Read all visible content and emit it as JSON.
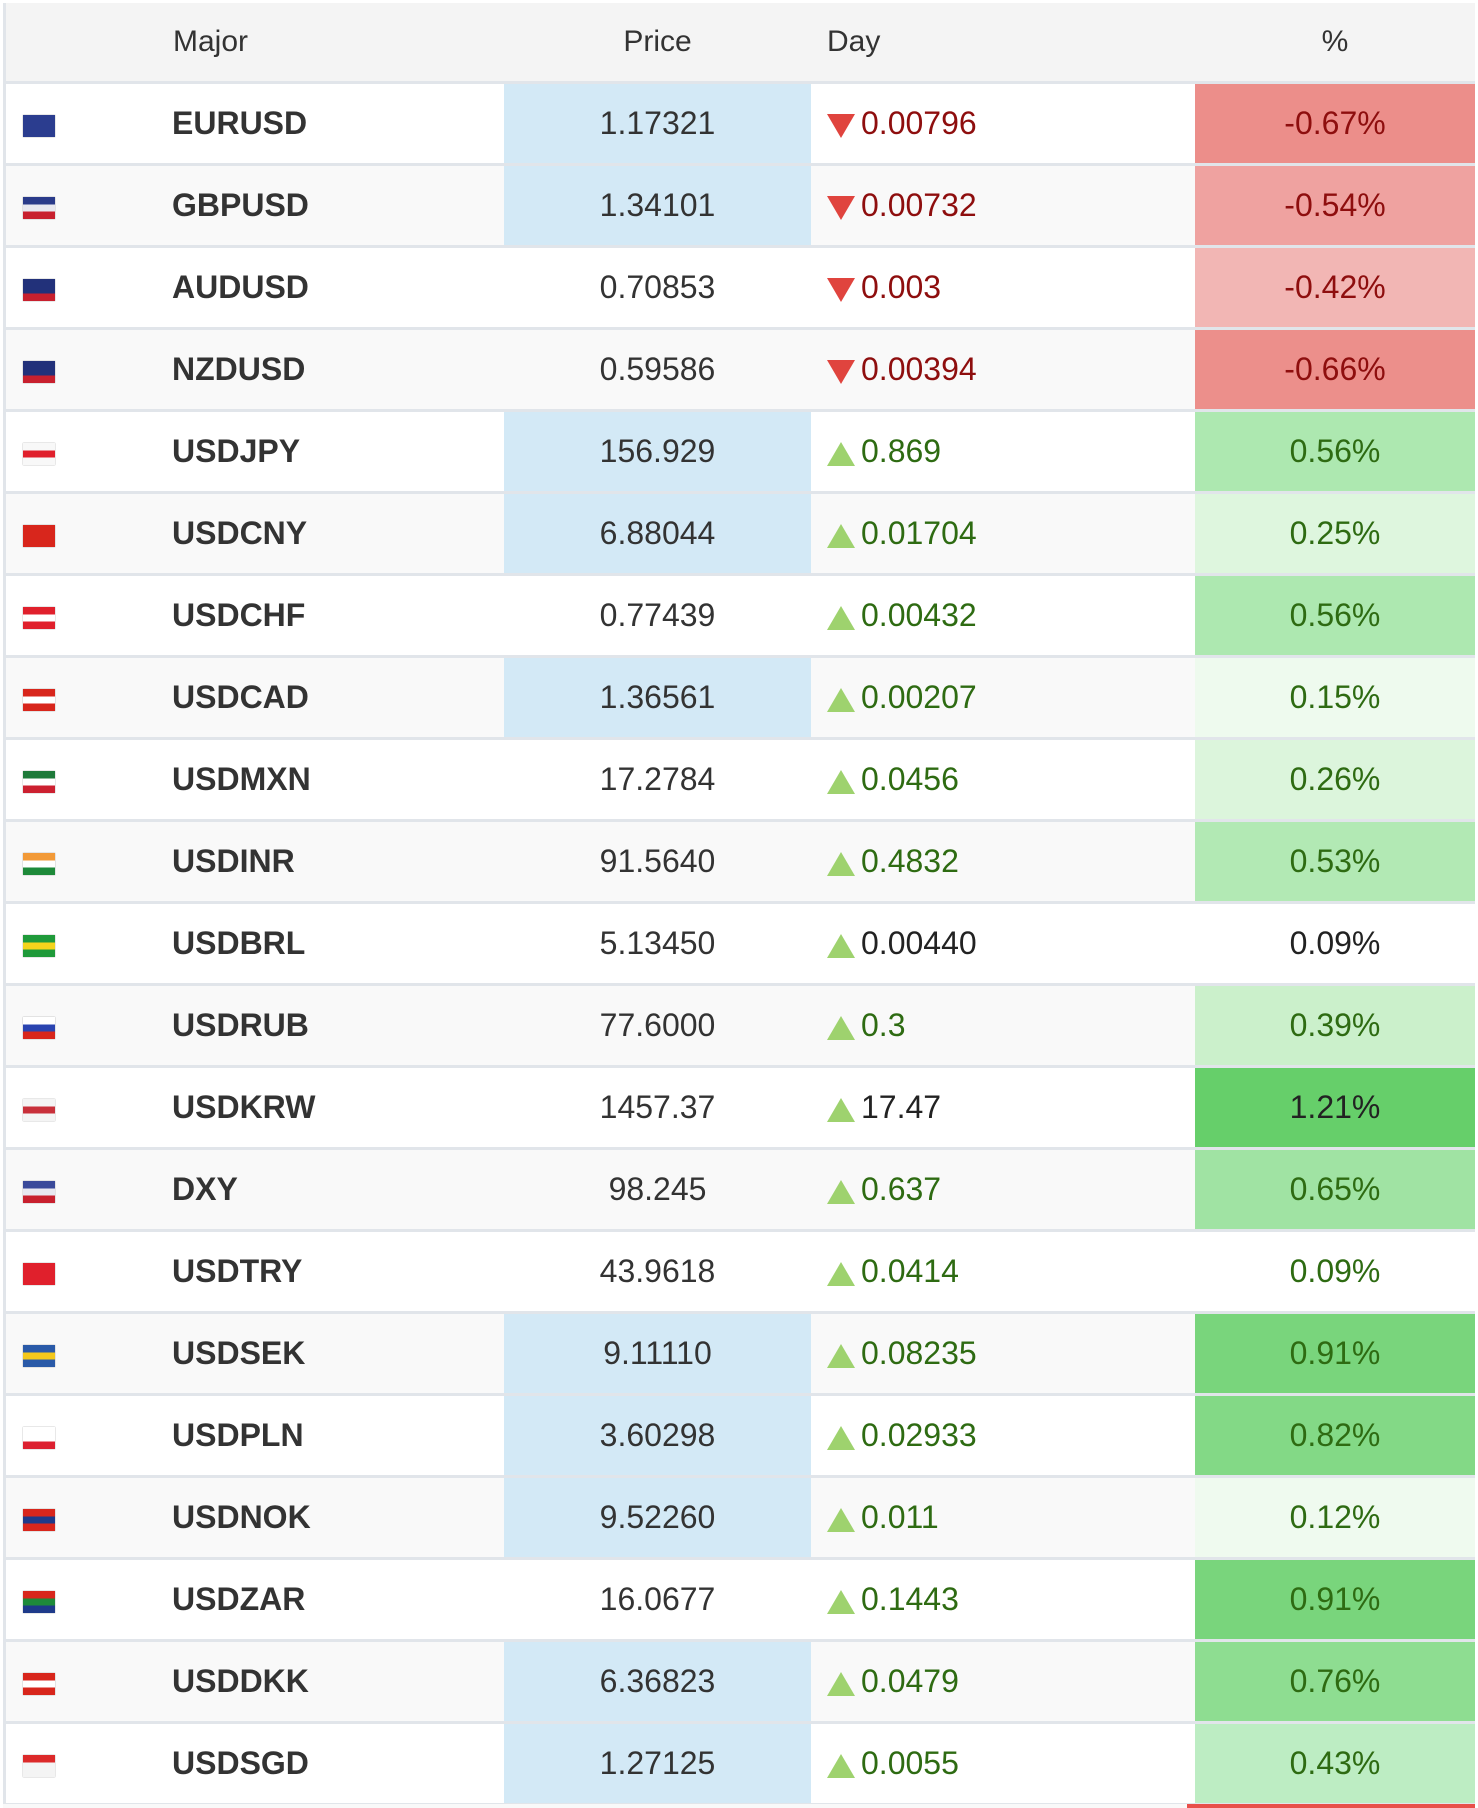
{
  "header": {
    "major": "Major",
    "price": "Price",
    "day": "Day",
    "pct": "%"
  },
  "rows": [
    {
      "symbol": "EURUSD",
      "price": "1.17321",
      "day": "0.00796",
      "dir": "down",
      "pct": "-0.67%",
      "pct_bg": "#ec8e8a",
      "price_hl": true,
      "flag": [
        "#2b3d8f",
        "#2b3d8f",
        "#2b3d8f"
      ]
    },
    {
      "symbol": "GBPUSD",
      "price": "1.34101",
      "day": "0.00732",
      "dir": "down",
      "pct": "-0.54%",
      "pct_bg": "#efa2a0",
      "price_hl": true,
      "flag": [
        "#2a3b8a",
        "#e8e8f0",
        "#c8202e"
      ]
    },
    {
      "symbol": "AUDUSD",
      "price": "0.70853",
      "day": "0.003",
      "dir": "down",
      "pct": "-0.42%",
      "pct_bg": "#f2b6b4",
      "price_hl": false,
      "flag": [
        "#22317a",
        "#22317a",
        "#c8202e"
      ]
    },
    {
      "symbol": "NZDUSD",
      "price": "0.59586",
      "day": "0.00394",
      "dir": "down",
      "pct": "-0.66%",
      "pct_bg": "#ec8f8b",
      "price_hl": false,
      "flag": [
        "#22317a",
        "#22317a",
        "#c8202e"
      ]
    },
    {
      "symbol": "USDJPY",
      "price": "156.929",
      "day": "0.869",
      "dir": "up",
      "pct": "0.56%",
      "pct_bg": "#ade8b0",
      "price_hl": true,
      "flag": [
        "#f8f8f8",
        "#e0202c",
        "#f8f8f8"
      ]
    },
    {
      "symbol": "USDCNY",
      "price": "6.88044",
      "day": "0.01704",
      "dir": "up",
      "pct": "0.25%",
      "pct_bg": "#def6de",
      "price_hl": true,
      "flag": [
        "#d8261c",
        "#d8261c",
        "#d8261c"
      ]
    },
    {
      "symbol": "USDCHF",
      "price": "0.77439",
      "day": "0.00432",
      "dir": "up",
      "pct": "0.56%",
      "pct_bg": "#ade8b0",
      "price_hl": false,
      "flag": [
        "#e0202c",
        "#ffffff",
        "#e0202c"
      ]
    },
    {
      "symbol": "USDCAD",
      "price": "1.36561",
      "day": "0.00207",
      "dir": "up",
      "pct": "0.15%",
      "pct_bg": "#eefaee",
      "price_hl": true,
      "flag": [
        "#d8261c",
        "#ffffff",
        "#d8261c"
      ]
    },
    {
      "symbol": "USDMXN",
      "price": "17.2784",
      "day": "0.0456",
      "dir": "up",
      "pct": "0.26%",
      "pct_bg": "#dcf5dc",
      "price_hl": false,
      "flag": [
        "#1e7a3a",
        "#ffffff",
        "#cc2030"
      ]
    },
    {
      "symbol": "USDINR",
      "price": "91.5640",
      "day": "0.4832",
      "dir": "up",
      "pct": "0.53%",
      "pct_bg": "#b2e9b4",
      "price_hl": false,
      "flag": [
        "#f29a38",
        "#ffffff",
        "#1e8a3a"
      ]
    },
    {
      "symbol": "USDBRL",
      "price": "5.13450",
      "day": "0.00440",
      "dir": "up",
      "pct": "0.09%",
      "pct_bg": "#ffffff",
      "price_hl": false,
      "neutral": true,
      "flag": [
        "#1f9a3a",
        "#f4d41c",
        "#1f9a3a"
      ]
    },
    {
      "symbol": "USDRUB",
      "price": "77.6000",
      "day": "0.3",
      "dir": "up",
      "pct": "0.39%",
      "pct_bg": "#cbf0cb",
      "price_hl": false,
      "flag": [
        "#ffffff",
        "#2a44b0",
        "#d8261c"
      ]
    },
    {
      "symbol": "USDKRW",
      "price": "1457.37",
      "day": "17.47",
      "dir": "up",
      "pct": "1.21%",
      "pct_bg": "#66cf6a",
      "price_hl": false,
      "neutral": true,
      "flag": [
        "#f4f4f4",
        "#c8303a",
        "#f4f4f4"
      ]
    },
    {
      "symbol": "DXY",
      "price": "98.245",
      "day": "0.637",
      "dir": "up",
      "pct": "0.65%",
      "pct_bg": "#a0e3a3",
      "price_hl": false,
      "flag": [
        "#3a4a9a",
        "#e8e8f0",
        "#c8202e"
      ]
    },
    {
      "symbol": "USDTRY",
      "price": "43.9618",
      "day": "0.0414",
      "dir": "up",
      "pct": "0.09%",
      "pct_bg": "#ffffff",
      "price_hl": false,
      "flag": [
        "#e0202c",
        "#e0202c",
        "#e0202c"
      ]
    },
    {
      "symbol": "USDSEK",
      "price": "9.11110",
      "day": "0.08235",
      "dir": "up",
      "pct": "0.91%",
      "pct_bg": "#79d57c",
      "price_hl": true,
      "flag": [
        "#2a5aa8",
        "#f4c81c",
        "#2a5aa8"
      ]
    },
    {
      "symbol": "USDPLN",
      "price": "3.60298",
      "day": "0.02933",
      "dir": "up",
      "pct": "0.82%",
      "pct_bg": "#83d986",
      "price_hl": true,
      "flag": [
        "#ffffff",
        "#ffffff",
        "#dc2030"
      ]
    },
    {
      "symbol": "USDNOK",
      "price": "9.52260",
      "day": "0.011",
      "dir": "up",
      "pct": "0.12%",
      "pct_bg": "#effaef",
      "price_hl": true,
      "flag": [
        "#d8261c",
        "#1e3a8a",
        "#d8261c"
      ]
    },
    {
      "symbol": "USDZAR",
      "price": "16.0677",
      "day": "0.1443",
      "dir": "up",
      "pct": "0.91%",
      "pct_bg": "#79d57c",
      "price_hl": false,
      "flag": [
        "#d8261c",
        "#1e8a3a",
        "#1e3a8a"
      ]
    },
    {
      "symbol": "USDDKK",
      "price": "6.36823",
      "day": "0.0479",
      "dir": "up",
      "pct": "0.76%",
      "pct_bg": "#8edd91",
      "price_hl": true,
      "flag": [
        "#d8261c",
        "#ffffff",
        "#d8261c"
      ]
    },
    {
      "symbol": "USDSGD",
      "price": "1.27125",
      "day": "0.0055",
      "dir": "up",
      "pct": "0.43%",
      "pct_bg": "#bdedc3",
      "price_hl": true,
      "flag": [
        "#dc2a2a",
        "#f4f4f4",
        "#f4f4f4"
      ]
    }
  ]
}
